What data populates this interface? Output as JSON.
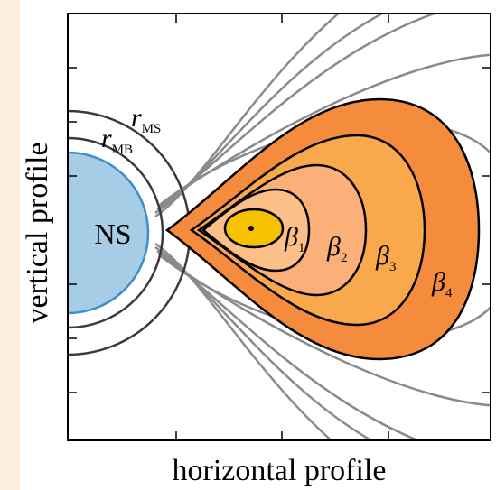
{
  "axes": {
    "x_label": "horizontal profile",
    "y_label": "vertical profile"
  },
  "star": {
    "label": "NS"
  },
  "radii": [
    {
      "symbol": "r",
      "subscript": "MS"
    },
    {
      "symbol": "r",
      "subscript": "MB"
    }
  ],
  "regions": [
    {
      "symbol": "β",
      "subscript": "1"
    },
    {
      "symbol": "β",
      "subscript": "2"
    },
    {
      "symbol": "β",
      "subscript": "3"
    },
    {
      "symbol": "β",
      "subscript": "4"
    }
  ]
}
